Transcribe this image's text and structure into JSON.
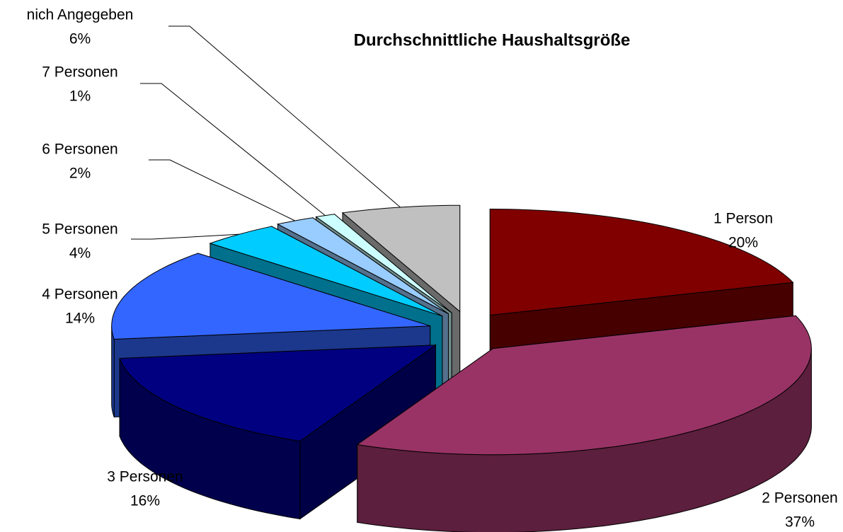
{
  "chart_data": {
    "type": "pie",
    "title": "Durchschnittliche Haushaltsgröße",
    "categories": [
      "1 Person",
      "2 Personen",
      "3 Personen",
      "4 Personen",
      "5 Personen",
      "6 Personen",
      "7 Personen",
      "nich Angegeben"
    ],
    "values": [
      20,
      37,
      16,
      14,
      4,
      2,
      1,
      6
    ],
    "value_labels": [
      "20%",
      "37%",
      "16%",
      "14%",
      "4%",
      "2%",
      "1%",
      "6%"
    ],
    "colors": [
      "#800000",
      "#993366",
      "#000080",
      "#3366ff",
      "#00ccff",
      "#99ccff",
      "#ccffff",
      "#c0c0c0"
    ]
  }
}
